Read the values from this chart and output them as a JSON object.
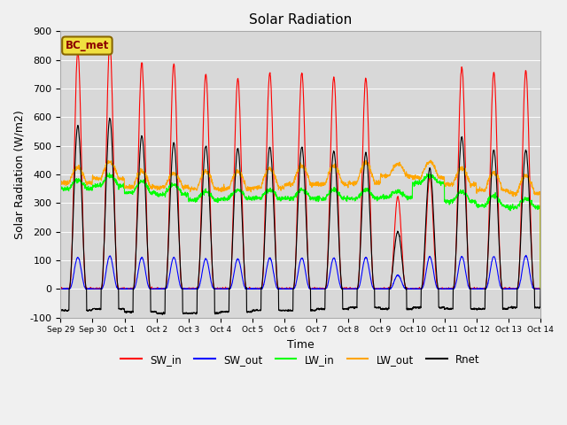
{
  "title": "Solar Radiation",
  "xlabel": "Time",
  "ylabel": "Solar Radiation (W/m2)",
  "ylim": [
    -100,
    900
  ],
  "xlim": [
    0,
    360
  ],
  "plot_bg": "#d8d8d8",
  "fig_bg": "#f0f0f0",
  "legend_labels": [
    "SW_in",
    "SW_out",
    "LW_in",
    "LW_out",
    "Rnet"
  ],
  "legend_colors": [
    "red",
    "blue",
    "lime",
    "orange",
    "black"
  ],
  "annotation_text": "BC_met",
  "xtick_labels": [
    "Sep 29",
    "Sep 30",
    "Oct 1",
    "Oct 2",
    "Oct 3",
    "Oct 4",
    "Oct 5",
    "Oct 6",
    "Oct 7",
    "Oct 8",
    "Oct 9",
    "Oct 10",
    "Oct 11",
    "Oct 12",
    "Oct 13",
    "Oct 14"
  ],
  "xtick_positions": [
    0,
    24,
    48,
    72,
    96,
    120,
    144,
    168,
    192,
    216,
    240,
    264,
    288,
    312,
    336,
    360
  ],
  "ytick_values": [
    -100,
    0,
    100,
    200,
    300,
    400,
    500,
    600,
    700,
    800,
    900
  ],
  "num_days": 15,
  "sw_in_peaks": [
    830,
    855,
    790,
    785,
    750,
    735,
    755,
    755,
    740,
    737,
    320,
    390,
    775,
    758,
    762
  ],
  "sw_out_peaks": [
    110,
    115,
    110,
    110,
    105,
    105,
    108,
    108,
    108,
    110,
    48,
    112,
    113,
    113,
    116
  ],
  "lw_in_base": [
    350,
    360,
    335,
    330,
    310,
    315,
    315,
    315,
    315,
    315,
    320,
    370,
    305,
    290,
    285
  ],
  "lw_in_amp": [
    30,
    35,
    40,
    35,
    30,
    30,
    30,
    30,
    30,
    30,
    20,
    25,
    35,
    35,
    30
  ],
  "lw_out_base": [
    370,
    385,
    355,
    355,
    350,
    350,
    355,
    365,
    365,
    370,
    395,
    390,
    365,
    345,
    335
  ],
  "lw_out_amp": [
    55,
    60,
    55,
    50,
    60,
    60,
    65,
    65,
    65,
    70,
    40,
    55,
    55,
    60,
    60
  ],
  "rnet_peaks": [
    570,
    595,
    535,
    510,
    500,
    490,
    495,
    495,
    480,
    475,
    200,
    420,
    530,
    485,
    485
  ],
  "rnet_night": [
    -75,
    -70,
    -80,
    -85,
    -85,
    -80,
    -75,
    -75,
    -70,
    -65,
    -70,
    -65,
    -70,
    -70,
    -65
  ],
  "day_start": 6.5,
  "day_end": 19.5
}
